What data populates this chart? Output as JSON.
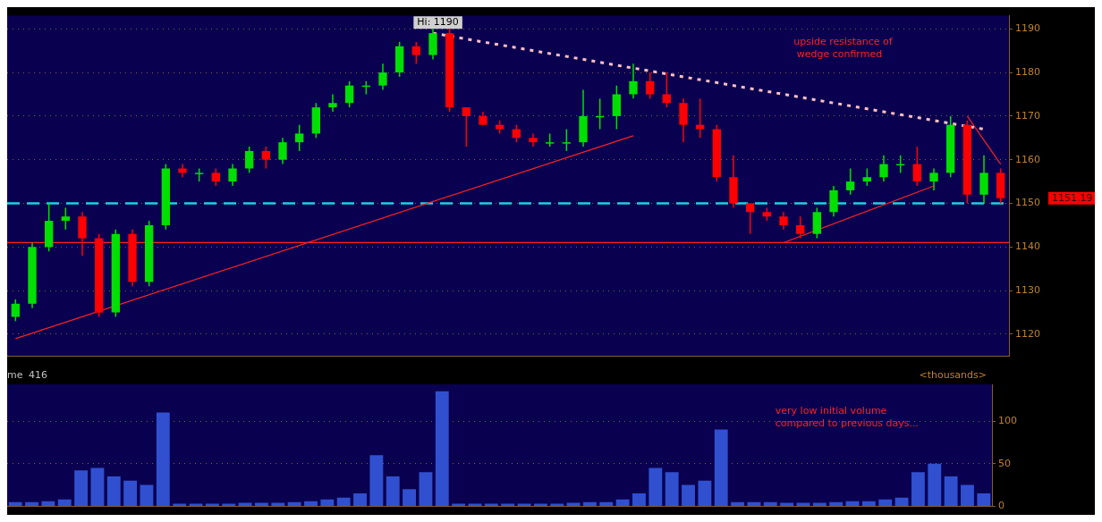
{
  "chart_data": [
    {
      "type": "candlestick",
      "categories": [
        null,
        null,
        null,
        null,
        null,
        null,
        null,
        null,
        null,
        null,
        null,
        null,
        null,
        null,
        null,
        null,
        null,
        null,
        null,
        null,
        null,
        null,
        null,
        null,
        null,
        null,
        null,
        null,
        null,
        null,
        null,
        null,
        null,
        null,
        null,
        null,
        null,
        null,
        null,
        null,
        null,
        null,
        null,
        null,
        null,
        null,
        null,
        null,
        null,
        null,
        null,
        null,
        null,
        null,
        null,
        null,
        null,
        null,
        null,
        null
      ],
      "ohlc": [
        [
          1124,
          1128,
          1123,
          1127
        ],
        [
          1127,
          1141,
          1126,
          1140
        ],
        [
          1140,
          1150,
          1139,
          1146
        ],
        [
          1146,
          1149,
          1144,
          1147
        ],
        [
          1147,
          1148,
          1138,
          1142
        ],
        [
          1142,
          1143,
          1124,
          1125
        ],
        [
          1125,
          1144,
          1124,
          1143
        ],
        [
          1143,
          1144,
          1131,
          1132
        ],
        [
          1132,
          1146,
          1131,
          1145
        ],
        [
          1145,
          1159,
          1144,
          1158
        ],
        [
          1158,
          1159,
          1156,
          1157
        ],
        [
          1157,
          1158,
          1155,
          1157
        ],
        [
          1157,
          1158,
          1154,
          1155
        ],
        [
          1155,
          1159,
          1154,
          1158
        ],
        [
          1158,
          1163,
          1157,
          1162
        ],
        [
          1162,
          1163,
          1158,
          1160
        ],
        [
          1160,
          1165,
          1159,
          1164
        ],
        [
          1164,
          1168,
          1162,
          1166
        ],
        [
          1166,
          1173,
          1165,
          1172
        ],
        [
          1172,
          1175,
          1171,
          1173
        ],
        [
          1173,
          1178,
          1172,
          1177
        ],
        [
          1177,
          1178,
          1175,
          1177
        ],
        [
          1177,
          1182,
          1176,
          1180
        ],
        [
          1180,
          1187,
          1179,
          1186
        ],
        [
          1186,
          1187,
          1182,
          1184
        ],
        [
          1184,
          1190,
          1183,
          1189
        ],
        [
          1189,
          1190,
          1171,
          1172
        ],
        [
          1172,
          1172,
          1163,
          1170
        ],
        [
          1170,
          1171,
          1168,
          1168
        ],
        [
          1168,
          1169,
          1166,
          1167
        ],
        [
          1167,
          1168,
          1164,
          1165
        ],
        [
          1165,
          1166,
          1163,
          1164
        ],
        [
          1164,
          1166,
          1163,
          1164
        ],
        [
          1164,
          1167,
          1162,
          1164
        ],
        [
          1164,
          1176,
          1163,
          1170
        ],
        [
          1170,
          1174,
          1167,
          1170
        ],
        [
          1170,
          1177,
          1167,
          1175
        ],
        [
          1175,
          1182,
          1174,
          1178
        ],
        [
          1178,
          1180,
          1174,
          1175
        ],
        [
          1175,
          1180,
          1172,
          1173
        ],
        [
          1173,
          1174,
          1164,
          1168
        ],
        [
          1168,
          1174,
          1165,
          1167
        ],
        [
          1167,
          1168,
          1155,
          1156
        ],
        [
          1156,
          1161,
          1149,
          1150
        ],
        [
          1150,
          1150,
          1143,
          1148
        ],
        [
          1148,
          1149,
          1146,
          1147
        ],
        [
          1147,
          1148,
          1144,
          1145
        ],
        [
          1145,
          1147,
          1142,
          1143
        ],
        [
          1143,
          1149,
          1142,
          1148
        ],
        [
          1148,
          1154,
          1147,
          1153
        ],
        [
          1153,
          1158,
          1152,
          1155
        ],
        [
          1155,
          1158,
          1154,
          1156
        ],
        [
          1156,
          1161,
          1155,
          1159
        ],
        [
          1159,
          1161,
          1157,
          1159
        ],
        [
          1159,
          1163,
          1154,
          1155
        ],
        [
          1155,
          1158,
          1153,
          1157
        ],
        [
          1157,
          1170,
          1156,
          1168
        ],
        [
          1168,
          1169,
          1150,
          1152
        ],
        [
          1152,
          1161,
          1150,
          1157
        ],
        [
          1157,
          1158,
          1150,
          1151.19
        ]
      ],
      "colors": [
        "#00e000",
        "#00e000",
        "#00e000",
        "#00e000",
        "#ff0000",
        "#ff0000",
        "#00e000",
        "#ff0000",
        "#00e000",
        "#00e000",
        "#ff0000",
        "#00e000",
        "#ff0000",
        "#00e000",
        "#00e000",
        "#ff0000",
        "#00e000",
        "#00e000",
        "#00e000",
        "#00e000",
        "#00e000",
        "#00e000",
        "#00e000",
        "#00e000",
        "#ff0000",
        "#00e000",
        "#ff0000",
        "#ff0000",
        "#ff0000",
        "#ff0000",
        "#ff0000",
        "#ff0000",
        "#00e000",
        "#00e000",
        "#00e000",
        "#00e000",
        "#00e000",
        "#00e000",
        "#ff0000",
        "#ff0000",
        "#ff0000",
        "#ff0000",
        "#ff0000",
        "#ff0000",
        "#ff0000",
        "#ff0000",
        "#ff0000",
        "#ff0000",
        "#00e000",
        "#00e000",
        "#00e000",
        "#00e000",
        "#00e000",
        "#00e000",
        "#ff0000",
        "#00e000",
        "#00e000",
        "#ff0000",
        "#00e000",
        "#ff0000"
      ],
      "series": [
        {
          "type": "line",
          "color": "#ff2020",
          "line_style": "solid",
          "values": [
            1119,
            null,
            null,
            null,
            null,
            null,
            null,
            null,
            null,
            null,
            null,
            null,
            null,
            null,
            null,
            null,
            null,
            null,
            null,
            null,
            null,
            null,
            null,
            null,
            null,
            null,
            null,
            null,
            null,
            null,
            null,
            null,
            null,
            null,
            null,
            null,
            null,
            1165.5,
            null,
            null,
            null,
            null,
            null,
            null,
            null,
            null,
            null,
            null,
            null,
            null,
            null,
            null,
            null,
            null,
            null,
            null,
            null,
            null,
            null,
            null
          ]
        },
        {
          "type": "line",
          "color": "#ffc0c0",
          "line_style": "dotted",
          "values": [
            null,
            null,
            null,
            null,
            null,
            null,
            null,
            null,
            null,
            null,
            null,
            null,
            null,
            null,
            null,
            null,
            null,
            null,
            null,
            null,
            null,
            null,
            null,
            null,
            null,
            1189,
            null,
            null,
            null,
            null,
            null,
            null,
            null,
            null,
            null,
            null,
            null,
            null,
            null,
            null,
            null,
            null,
            null,
            null,
            null,
            null,
            null,
            null,
            null,
            null,
            null,
            null,
            null,
            null,
            null,
            null,
            null,
            null,
            1167,
            null
          ]
        },
        {
          "type": "line",
          "color": "#ff2020",
          "line_style": "solid",
          "values": [
            null,
            null,
            null,
            null,
            null,
            null,
            null,
            null,
            null,
            null,
            null,
            null,
            null,
            null,
            null,
            null,
            null,
            null,
            null,
            null,
            null,
            null,
            null,
            null,
            null,
            null,
            null,
            null,
            null,
            null,
            null,
            null,
            null,
            null,
            null,
            null,
            null,
            null,
            null,
            null,
            null,
            null,
            null,
            null,
            null,
            null,
            1141,
            null,
            null,
            null,
            null,
            null,
            null,
            null,
            null,
            1154,
            null,
            null,
            null,
            null
          ]
        },
        {
          "type": "line",
          "color": "#ff2020",
          "line_style": "solid",
          "values": [
            null,
            null,
            null,
            null,
            null,
            null,
            null,
            null,
            null,
            null,
            null,
            null,
            null,
            null,
            null,
            null,
            null,
            null,
            null,
            null,
            null,
            null,
            null,
            null,
            null,
            null,
            null,
            null,
            null,
            null,
            null,
            null,
            null,
            null,
            null,
            null,
            null,
            null,
            null,
            null,
            null,
            null,
            null,
            null,
            null,
            null,
            null,
            null,
            null,
            null,
            null,
            null,
            null,
            null,
            null,
            null,
            null,
            1170,
            null,
            1159
          ]
        }
      ],
      "ref_lines": [
        {
          "axis": "y",
          "value": 1141,
          "color": "#ff2020",
          "line_style": "solid"
        },
        {
          "axis": "y",
          "value": 1150,
          "color": "#20d0e0",
          "line_style": "dashed"
        }
      ],
      "ylim": [
        1115,
        1193
      ],
      "yticks": [
        1120,
        1130,
        1140,
        1150,
        1160,
        1170,
        1180,
        1190
      ],
      "grid": "y",
      "annotations": [
        {
          "text": "Hi: 1190",
          "y": 1190
        },
        "1151.19",
        "upside resistance of\n wedge confirmed"
      ]
    },
    {
      "type": "bar",
      "categories": [
        null,
        null,
        null,
        null,
        null,
        null,
        null,
        null,
        null,
        null,
        null,
        null,
        null,
        null,
        null,
        null,
        null,
        null,
        null,
        null,
        null,
        null,
        null,
        null,
        null,
        null,
        null,
        null,
        null,
        null,
        null,
        null,
        null,
        null,
        null,
        null,
        null,
        null,
        null,
        null,
        null,
        null,
        null,
        null,
        null,
        null,
        null,
        null,
        null,
        null,
        null,
        null,
        null,
        null,
        null,
        null,
        null,
        null,
        null,
        null
      ],
      "values": [
        5,
        5,
        6,
        8,
        42,
        45,
        35,
        30,
        25,
        110,
        3,
        3,
        3,
        3,
        4,
        4,
        4,
        5,
        6,
        8,
        10,
        15,
        60,
        35,
        20,
        40,
        135,
        3,
        3,
        3,
        3,
        3,
        3,
        3,
        4,
        5,
        5,
        8,
        15,
        45,
        40,
        25,
        30,
        90,
        5,
        5,
        5,
        4,
        4,
        4,
        5,
        6,
        6,
        8,
        10,
        40,
        50,
        35,
        25,
        15
      ],
      "color": "#3050d0",
      "ylim": [
        0,
        143
      ],
      "yticks": [
        0,
        50,
        100
      ],
      "grid": "y",
      "annotations": [
        "me",
        "416",
        "<thousands>",
        "very low initial volume\ncompared to previous days..."
      ]
    }
  ]
}
